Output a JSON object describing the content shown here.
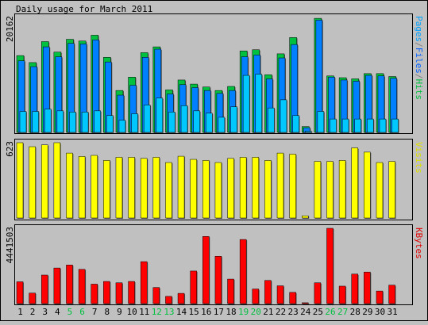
{
  "chart_data": [
    {
      "type": "bar",
      "title": "Daily usage for March 2011",
      "ylabel_parts": [
        {
          "text": "Pages",
          "color": "#00a0ff"
        },
        {
          "text": "/",
          "color": "#808080"
        },
        {
          "text": "Files",
          "color": "#0060ff"
        },
        {
          "text": "/",
          "color": "#808080"
        },
        {
          "text": "Hits",
          "color": "#00c040"
        }
      ],
      "ymax_label": "20162",
      "ylim": [
        0,
        20162
      ],
      "series": [
        {
          "name": "Hits",
          "color": "#00c040",
          "values": [
            13200,
            12000,
            15600,
            13800,
            16000,
            15700,
            16700,
            12900,
            7200,
            9500,
            13700,
            14700,
            7300,
            9000,
            8300,
            7800,
            7200,
            7900,
            14000,
            14200,
            9900,
            13500,
            16300,
            1000,
            19600,
            9700,
            9400,
            9200,
            10100,
            10100,
            9600
          ]
        },
        {
          "name": "Files",
          "color": "#0080ff",
          "values": [
            12300,
            11300,
            14700,
            13000,
            15300,
            15200,
            15900,
            12100,
            6400,
            8100,
            12900,
            14300,
            6600,
            8200,
            7700,
            7200,
            6700,
            7200,
            13000,
            13300,
            9200,
            12800,
            15100,
            800,
            19300,
            9500,
            9000,
            8800,
            9800,
            9700,
            9300
          ]
        },
        {
          "name": "Pages",
          "color": "#00c8ff",
          "values": [
            3600,
            3600,
            4000,
            3700,
            3500,
            3500,
            3700,
            2900,
            2100,
            3200,
            4700,
            5900,
            3500,
            4600,
            3700,
            3300,
            2600,
            4400,
            9800,
            10000,
            4200,
            5600,
            2900,
            200,
            3600,
            2300,
            2300,
            2300,
            2300,
            2300,
            2300
          ]
        }
      ],
      "categories": [
        "1",
        "2",
        "3",
        "4",
        "5",
        "6",
        "7",
        "8",
        "9",
        "10",
        "11",
        "12",
        "13",
        "14",
        "15",
        "16",
        "17",
        "18",
        "19",
        "20",
        "21",
        "22",
        "23",
        "24",
        "25",
        "26",
        "27",
        "28",
        "29",
        "30",
        "31"
      ],
      "weekend_color": "#00c040",
      "weekend_days": [
        "5",
        "6",
        "12",
        "13",
        "19",
        "20",
        "26",
        "27"
      ]
    },
    {
      "type": "bar",
      "ylabel": "Visits",
      "ylabel_color": "#e0e000",
      "ymax_label": "623",
      "ylim": [
        0,
        623
      ],
      "series": [
        {
          "name": "Visits",
          "color": "#ffff00",
          "values": [
            623,
            590,
            605,
            623,
            537,
            509,
            518,
            476,
            502,
            502,
            493,
            502,
            459,
            511,
            485,
            476,
            459,
            493,
            502,
            502,
            476,
            537,
            528,
            18,
            468,
            468,
            476,
            580,
            545,
            459,
            468
          ]
        }
      ]
    },
    {
      "type": "bar",
      "ylabel": "KBytes",
      "ylabel_color": "#e00000",
      "ymax_label": "4441503",
      "ylim": [
        0,
        4441503
      ],
      "series": [
        {
          "name": "KBytes",
          "color": "#ff0000",
          "values": [
            1287000,
            621000,
            1683000,
            2099000,
            2277000,
            2020000,
            1148000,
            1307000,
            1228000,
            1307000,
            2475000,
            950000,
            426000,
            604000,
            1921000,
            3960000,
            2792000,
            1446000,
            3782000,
            861000,
            1366000,
            1050000,
            663000,
            50000,
            1228000,
            4441503,
            1030000,
            1742000,
            1862000,
            742000,
            1089000
          ]
        }
      ]
    }
  ]
}
